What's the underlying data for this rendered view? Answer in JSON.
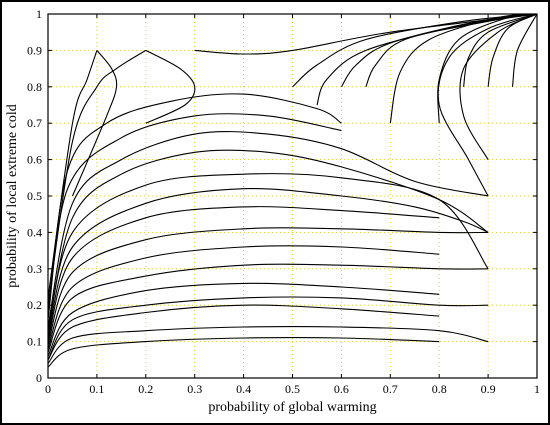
{
  "chart_data": {
    "type": "line",
    "title": "",
    "xlabel": "probability of global warming",
    "ylabel": "probability of local extreme cold",
    "xlim": [
      0,
      1
    ],
    "ylim": [
      0,
      1
    ],
    "xticks": [
      "0",
      "0.1",
      "0.2",
      "0.3",
      "0.4",
      "0.5",
      "0.6",
      "0.7",
      "0.8",
      "0.9",
      "1"
    ],
    "yticks": [
      "0",
      "0.1",
      "0.2",
      "0.3",
      "0.4",
      "0.5",
      "0.6",
      "0.7",
      "0.8",
      "0.9",
      "1"
    ],
    "grid": true,
    "legend": "none",
    "colors": {
      "line": "#000000",
      "grid": "#d8c800",
      "background": "#ffffff"
    },
    "series": [
      {
        "values": [
          [
            0.0,
            0.03
          ],
          [
            0.05,
            0.08
          ],
          [
            0.2,
            0.1
          ],
          [
            0.4,
            0.11
          ],
          [
            0.6,
            0.11
          ],
          [
            0.8,
            0.1
          ]
        ]
      },
      {
        "values": [
          [
            0.0,
            0.04
          ],
          [
            0.05,
            0.11
          ],
          [
            0.2,
            0.13
          ],
          [
            0.4,
            0.14
          ],
          [
            0.6,
            0.14
          ],
          [
            0.8,
            0.13
          ],
          [
            0.9,
            0.1
          ]
        ]
      },
      {
        "values": [
          [
            0.0,
            0.05
          ],
          [
            0.05,
            0.14
          ],
          [
            0.2,
            0.18
          ],
          [
            0.4,
            0.2
          ],
          [
            0.6,
            0.19
          ],
          [
            0.8,
            0.17
          ]
        ]
      },
      {
        "values": [
          [
            0.0,
            0.05
          ],
          [
            0.05,
            0.16
          ],
          [
            0.2,
            0.2
          ],
          [
            0.4,
            0.22
          ],
          [
            0.6,
            0.22
          ],
          [
            0.8,
            0.2
          ],
          [
            0.9,
            0.2
          ]
        ]
      },
      {
        "values": [
          [
            0.0,
            0.06
          ],
          [
            0.05,
            0.18
          ],
          [
            0.2,
            0.24
          ],
          [
            0.4,
            0.26
          ],
          [
            0.6,
            0.25
          ],
          [
            0.8,
            0.23
          ]
        ]
      },
      {
        "values": [
          [
            0.0,
            0.07
          ],
          [
            0.05,
            0.22
          ],
          [
            0.2,
            0.28
          ],
          [
            0.4,
            0.31
          ],
          [
            0.6,
            0.31
          ],
          [
            0.8,
            0.3
          ],
          [
            0.9,
            0.3
          ]
        ]
      },
      {
        "values": [
          [
            0.0,
            0.08
          ],
          [
            0.05,
            0.25
          ],
          [
            0.2,
            0.33
          ],
          [
            0.4,
            0.36
          ],
          [
            0.6,
            0.36
          ],
          [
            0.8,
            0.34
          ]
        ]
      },
      {
        "values": [
          [
            0.0,
            0.09
          ],
          [
            0.05,
            0.29
          ],
          [
            0.2,
            0.38
          ],
          [
            0.4,
            0.41
          ],
          [
            0.6,
            0.41
          ],
          [
            0.8,
            0.4
          ],
          [
            0.9,
            0.4
          ]
        ]
      },
      {
        "values": [
          [
            0.0,
            0.1
          ],
          [
            0.05,
            0.33
          ],
          [
            0.2,
            0.44
          ],
          [
            0.4,
            0.47
          ],
          [
            0.6,
            0.46
          ],
          [
            0.8,
            0.44
          ]
        ]
      },
      {
        "values": [
          [
            0.0,
            0.11
          ],
          [
            0.05,
            0.36
          ],
          [
            0.2,
            0.48
          ],
          [
            0.4,
            0.52
          ],
          [
            0.6,
            0.5
          ],
          [
            0.75,
            0.47
          ],
          [
            0.85,
            0.43
          ],
          [
            0.9,
            0.4
          ]
        ]
      },
      {
        "values": [
          [
            0.0,
            0.12
          ],
          [
            0.05,
            0.4
          ],
          [
            0.2,
            0.53
          ],
          [
            0.4,
            0.56
          ],
          [
            0.6,
            0.55
          ],
          [
            0.8,
            0.49
          ],
          [
            0.9,
            0.3
          ]
        ]
      },
      {
        "values": [
          [
            0.0,
            0.13
          ],
          [
            0.05,
            0.44
          ],
          [
            0.15,
            0.56
          ],
          [
            0.3,
            0.62
          ],
          [
            0.45,
            0.62
          ],
          [
            0.6,
            0.58
          ],
          [
            0.8,
            0.49
          ],
          [
            0.9,
            0.4
          ]
        ]
      },
      {
        "values": [
          [
            0.0,
            0.14
          ],
          [
            0.05,
            0.48
          ],
          [
            0.15,
            0.6
          ],
          [
            0.3,
            0.67
          ],
          [
            0.45,
            0.67
          ],
          [
            0.6,
            0.63
          ],
          [
            0.75,
            0.54
          ],
          [
            0.9,
            0.5
          ]
        ]
      },
      {
        "values": [
          [
            0.0,
            0.16
          ],
          [
            0.04,
            0.52
          ],
          [
            0.15,
            0.66
          ],
          [
            0.3,
            0.72
          ],
          [
            0.45,
            0.72
          ],
          [
            0.6,
            0.68
          ]
        ]
      },
      {
        "values": [
          [
            0.0,
            0.18
          ],
          [
            0.04,
            0.57
          ],
          [
            0.12,
            0.7
          ],
          [
            0.25,
            0.76
          ],
          [
            0.4,
            0.78
          ],
          [
            0.55,
            0.74
          ],
          [
            0.6,
            0.7
          ]
        ]
      },
      {
        "values": [
          [
            0.0,
            0.2
          ],
          [
            0.05,
            0.65
          ],
          [
            0.1,
            0.8
          ],
          [
            0.14,
            0.85
          ],
          [
            0.2,
            0.9
          ]
        ]
      },
      {
        "values": [
          [
            0.0,
            0.22
          ],
          [
            0.05,
            0.7
          ],
          [
            0.08,
            0.82
          ],
          [
            0.1,
            0.9
          ]
        ]
      },
      {
        "values": [
          [
            0.1,
            0.9
          ],
          [
            0.13,
            0.85
          ],
          [
            0.14,
            0.8
          ],
          [
            0.12,
            0.72
          ],
          [
            0.05,
            0.5
          ]
        ]
      },
      {
        "values": [
          [
            0.2,
            0.9
          ],
          [
            0.27,
            0.85
          ],
          [
            0.3,
            0.8
          ],
          [
            0.28,
            0.75
          ],
          [
            0.2,
            0.7
          ]
        ]
      },
      {
        "values": [
          [
            0.3,
            0.9
          ],
          [
            0.4,
            0.89
          ],
          [
            0.5,
            0.9
          ],
          [
            0.7,
            0.95
          ],
          [
            1.0,
            1.0
          ]
        ]
      },
      {
        "values": [
          [
            0.5,
            0.8
          ],
          [
            0.55,
            0.86
          ],
          [
            0.65,
            0.93
          ],
          [
            0.85,
            0.98
          ],
          [
            1.0,
            1.0
          ]
        ]
      },
      {
        "values": [
          [
            0.55,
            0.75
          ],
          [
            0.57,
            0.82
          ],
          [
            0.65,
            0.9
          ],
          [
            0.85,
            0.97
          ],
          [
            1.0,
            1.0
          ]
        ]
      },
      {
        "values": [
          [
            0.6,
            0.8
          ],
          [
            0.63,
            0.86
          ],
          [
            0.7,
            0.92
          ],
          [
            0.88,
            0.98
          ],
          [
            1.0,
            1.0
          ]
        ]
      },
      {
        "values": [
          [
            0.65,
            0.8
          ],
          [
            0.67,
            0.86
          ],
          [
            0.73,
            0.93
          ],
          [
            0.9,
            0.98
          ],
          [
            1.0,
            1.0
          ]
        ]
      },
      {
        "values": [
          [
            0.7,
            0.7
          ],
          [
            0.72,
            0.84
          ],
          [
            0.78,
            0.93
          ],
          [
            0.92,
            0.99
          ],
          [
            1.0,
            1.0
          ]
        ]
      },
      {
        "values": [
          [
            0.8,
            0.7
          ],
          [
            0.8,
            0.82
          ],
          [
            0.84,
            0.93
          ],
          [
            0.94,
            0.99
          ],
          [
            1.0,
            1.0
          ]
        ]
      },
      {
        "values": [
          [
            0.85,
            0.8
          ],
          [
            0.86,
            0.88
          ],
          [
            0.9,
            0.95
          ],
          [
            1.0,
            1.0
          ]
        ]
      },
      {
        "values": [
          [
            0.9,
            0.8
          ],
          [
            0.91,
            0.88
          ],
          [
            0.94,
            0.96
          ],
          [
            1.0,
            1.0
          ]
        ]
      },
      {
        "values": [
          [
            0.9,
            0.5
          ],
          [
            0.86,
            0.6
          ],
          [
            0.8,
            0.75
          ],
          [
            0.82,
            0.88
          ],
          [
            0.9,
            0.96
          ],
          [
            1.0,
            1.0
          ]
        ]
      },
      {
        "values": [
          [
            0.9,
            0.6
          ],
          [
            0.85,
            0.72
          ],
          [
            0.85,
            0.85
          ],
          [
            0.92,
            0.95
          ],
          [
            1.0,
            1.0
          ]
        ]
      },
      {
        "values": [
          [
            0.95,
            0.8
          ],
          [
            0.96,
            0.9
          ],
          [
            1.0,
            1.0
          ]
        ]
      }
    ]
  }
}
